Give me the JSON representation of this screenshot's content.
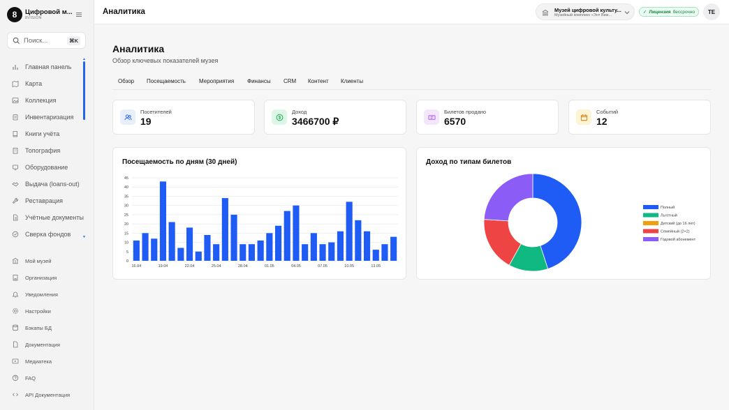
{
  "sidebar": {
    "brand": {
      "logo": "8",
      "name": "Цифровой м...",
      "sub": "8VISION"
    },
    "menu_icon": "hamburger-icon",
    "search": {
      "placeholder": "Поиск...",
      "shortcut": "⌘K"
    },
    "items": [
      {
        "label": "Главная панель",
        "icon": "bar-chart-icon"
      },
      {
        "label": "Карта",
        "icon": "map-icon"
      },
      {
        "label": "Коллекция",
        "icon": "image-icon"
      },
      {
        "label": "Инвентаризация",
        "icon": "clipboard-icon"
      },
      {
        "label": "Книги учёта",
        "icon": "book-icon"
      },
      {
        "label": "Топография",
        "icon": "building-icon"
      },
      {
        "label": "Оборудование",
        "icon": "device-icon"
      },
      {
        "label": "Выдача (loans-out)",
        "icon": "handshake-icon"
      },
      {
        "label": "Реставрация",
        "icon": "tool-icon"
      },
      {
        "label": "Учётные документы",
        "icon": "document-icon"
      },
      {
        "label": "Сверка фондов",
        "icon": "check-circle-icon"
      }
    ],
    "secondary": [
      {
        "label": "Мой музей",
        "icon": "museum-icon"
      },
      {
        "label": "Организация",
        "icon": "organization-icon"
      },
      {
        "label": "Уведомления",
        "icon": "bell-icon"
      },
      {
        "label": "Настройки",
        "icon": "gear-icon"
      },
      {
        "label": "Бэкапы БД",
        "icon": "database-icon"
      },
      {
        "label": "Документация",
        "icon": "file-icon"
      },
      {
        "label": "Медиатека",
        "icon": "media-icon"
      },
      {
        "label": "FAQ",
        "icon": "help-icon"
      },
      {
        "label": "API Документация",
        "icon": "code-icon"
      }
    ]
  },
  "header": {
    "title": "Аналитика",
    "museum": {
      "name": "Музей цифровой культу...",
      "sub": "Музейный комплекс «Энт Виж..."
    },
    "license": {
      "label": "Лицензия",
      "value": "бессрочно"
    },
    "avatar": "TE"
  },
  "page": {
    "title": "Аналитика",
    "subtitle": "Обзор ключевых показателей музея",
    "tabs": [
      "Обзор",
      "Посещаемость",
      "Мероприятия",
      "Финансы",
      "CRM",
      "Контент",
      "Клиенты"
    ]
  },
  "kpis": [
    {
      "label": "Посетителей",
      "value": "19",
      "icon": "users-icon",
      "bg": "#e8eefc",
      "fg": "#2563eb"
    },
    {
      "label": "Доход",
      "value": "3466700 ₽",
      "icon": "dollar-icon",
      "bg": "#dcf7e6",
      "fg": "#16a34a"
    },
    {
      "label": "Билетов продано",
      "value": "6570",
      "icon": "ticket-icon",
      "bg": "#f4e6fb",
      "fg": "#a855f7"
    },
    {
      "label": "Событий",
      "value": "12",
      "icon": "calendar-icon",
      "bg": "#fdf4d3",
      "fg": "#d97706"
    }
  ],
  "charts": {
    "attendance_title": "Посещаемость по дням (30 дней)",
    "revenue_title": "Доход по типам билетов"
  },
  "chart_data": [
    {
      "type": "bar",
      "title": "Посещаемость по дням (30 дней)",
      "color": "#1f5cf5",
      "ylim": [
        0,
        45
      ],
      "yticks": [
        0,
        5,
        10,
        15,
        20,
        25,
        30,
        35,
        40,
        45
      ],
      "grid": true,
      "x_tick_labels": [
        "16.04",
        "19.04",
        "22.04",
        "25.04",
        "28.04",
        "01.05",
        "04.05",
        "07.05",
        "10.05",
        "13.05"
      ],
      "values": [
        11,
        15,
        12,
        43,
        21,
        7,
        18,
        5,
        14,
        9,
        34,
        25,
        9,
        9,
        11,
        15,
        19,
        27,
        30,
        9,
        15,
        9,
        10,
        16,
        32,
        22,
        16,
        6,
        9,
        13
      ]
    },
    {
      "type": "pie",
      "title": "Доход по типам билетов",
      "legend_position": "right",
      "labels": [
        "Полный",
        "Льготный",
        "Детский (до 16 лет)",
        "Семейный (2+2)",
        "Годовой абонемент"
      ],
      "values": [
        45,
        13,
        0,
        18,
        24
      ],
      "colors": [
        "#1f5cf5",
        "#10b981",
        "#f59e0b",
        "#ef4444",
        "#8b5cf6"
      ]
    }
  ]
}
